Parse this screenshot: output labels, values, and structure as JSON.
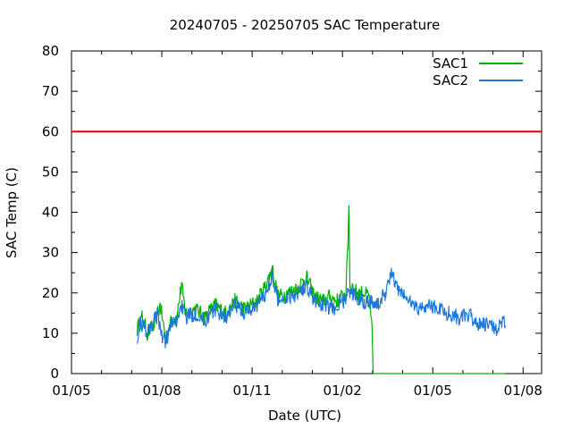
{
  "chart_data": {
    "type": "line",
    "title": "20240705 - 20250705 SAC Temperature",
    "xlabel": "Date (UTC)",
    "ylabel": "SAC Temp (C)",
    "x_ticks": [
      "01/05",
      "01/08",
      "01/11",
      "01/02",
      "01/05",
      "01/08"
    ],
    "y_ticks": [
      0,
      10,
      20,
      30,
      40,
      50,
      60,
      70,
      80
    ],
    "xlim": [
      "2024-05-01",
      "2025-08-10"
    ],
    "ylim": [
      0,
      80
    ],
    "legend_position": "top-right",
    "threshold": {
      "y": 60,
      "color": "#e00000"
    },
    "series": [
      {
        "name": "SAC1",
        "color": "#00b000",
        "points": [
          [
            "2024-07-05",
            11
          ],
          [
            "2024-07-10",
            14
          ],
          [
            "2024-07-15",
            10
          ],
          [
            "2024-07-22",
            12
          ],
          [
            "2024-07-28",
            17
          ],
          [
            "2024-08-02",
            9
          ],
          [
            "2024-08-08",
            13
          ],
          [
            "2024-08-14",
            15
          ],
          [
            "2024-08-18",
            22
          ],
          [
            "2024-08-22",
            15
          ],
          [
            "2024-09-01",
            16
          ],
          [
            "2024-09-10",
            14
          ],
          [
            "2024-09-20",
            17
          ],
          [
            "2024-10-01",
            15
          ],
          [
            "2024-10-10",
            18
          ],
          [
            "2024-10-20",
            16
          ],
          [
            "2024-11-01",
            18
          ],
          [
            "2024-11-10",
            22
          ],
          [
            "2024-11-16",
            26
          ],
          [
            "2024-11-22",
            19
          ],
          [
            "2024-12-01",
            20
          ],
          [
            "2024-12-10",
            21
          ],
          [
            "2024-12-20",
            24
          ],
          [
            "2024-12-28",
            19
          ],
          [
            "2025-01-05",
            18
          ],
          [
            "2025-01-12",
            19
          ],
          [
            "2025-01-20",
            18
          ],
          [
            "2025-01-28",
            20
          ],
          [
            "2025-01-30",
            32
          ],
          [
            "2025-01-31",
            42
          ],
          [
            "2025-02-01",
            22
          ],
          [
            "2025-02-08",
            20
          ],
          [
            "2025-02-15",
            20
          ],
          [
            "2025-02-20",
            19
          ],
          [
            "2025-02-23",
            10
          ],
          [
            "2025-02-24",
            0
          ],
          [
            "2025-04-01",
            0
          ],
          [
            "2025-05-15",
            0
          ],
          [
            "2025-07-05",
            0
          ]
        ]
      },
      {
        "name": "SAC2",
        "color": "#1e78dc",
        "points": [
          [
            "2024-07-05",
            9
          ],
          [
            "2024-07-08",
            13
          ],
          [
            "2024-07-12",
            11
          ],
          [
            "2024-07-18",
            11
          ],
          [
            "2024-07-25",
            15
          ],
          [
            "2024-07-30",
            9
          ],
          [
            "2024-08-02",
            8
          ],
          [
            "2024-08-08",
            12
          ],
          [
            "2024-08-13",
            13
          ],
          [
            "2024-08-18",
            17
          ],
          [
            "2024-08-22",
            14
          ],
          [
            "2024-09-01",
            15
          ],
          [
            "2024-09-10",
            13
          ],
          [
            "2024-09-20",
            16
          ],
          [
            "2024-10-01",
            14
          ],
          [
            "2024-10-10",
            17
          ],
          [
            "2024-10-20",
            15
          ],
          [
            "2024-11-01",
            17
          ],
          [
            "2024-11-10",
            20
          ],
          [
            "2024-11-15",
            24
          ],
          [
            "2024-11-22",
            18
          ],
          [
            "2024-12-01",
            19
          ],
          [
            "2024-12-10",
            20
          ],
          [
            "2024-12-20",
            22
          ],
          [
            "2024-12-28",
            18
          ],
          [
            "2025-01-05",
            17
          ],
          [
            "2025-01-15",
            16
          ],
          [
            "2025-01-25",
            18
          ],
          [
            "2025-02-01",
            20
          ],
          [
            "2025-02-08",
            19
          ],
          [
            "2025-02-15",
            18
          ],
          [
            "2025-02-22",
            18
          ],
          [
            "2025-03-01",
            17
          ],
          [
            "2025-03-08",
            20
          ],
          [
            "2025-03-14",
            25
          ],
          [
            "2025-03-20",
            21
          ],
          [
            "2025-04-01",
            18
          ],
          [
            "2025-04-10",
            16
          ],
          [
            "2025-04-20",
            17
          ],
          [
            "2025-05-01",
            16
          ],
          [
            "2025-05-10",
            15
          ],
          [
            "2025-05-20",
            14
          ],
          [
            "2025-06-01",
            14
          ],
          [
            "2025-06-10",
            12
          ],
          [
            "2025-06-20",
            12
          ],
          [
            "2025-06-28",
            11
          ],
          [
            "2025-07-05",
            13
          ]
        ]
      }
    ]
  }
}
